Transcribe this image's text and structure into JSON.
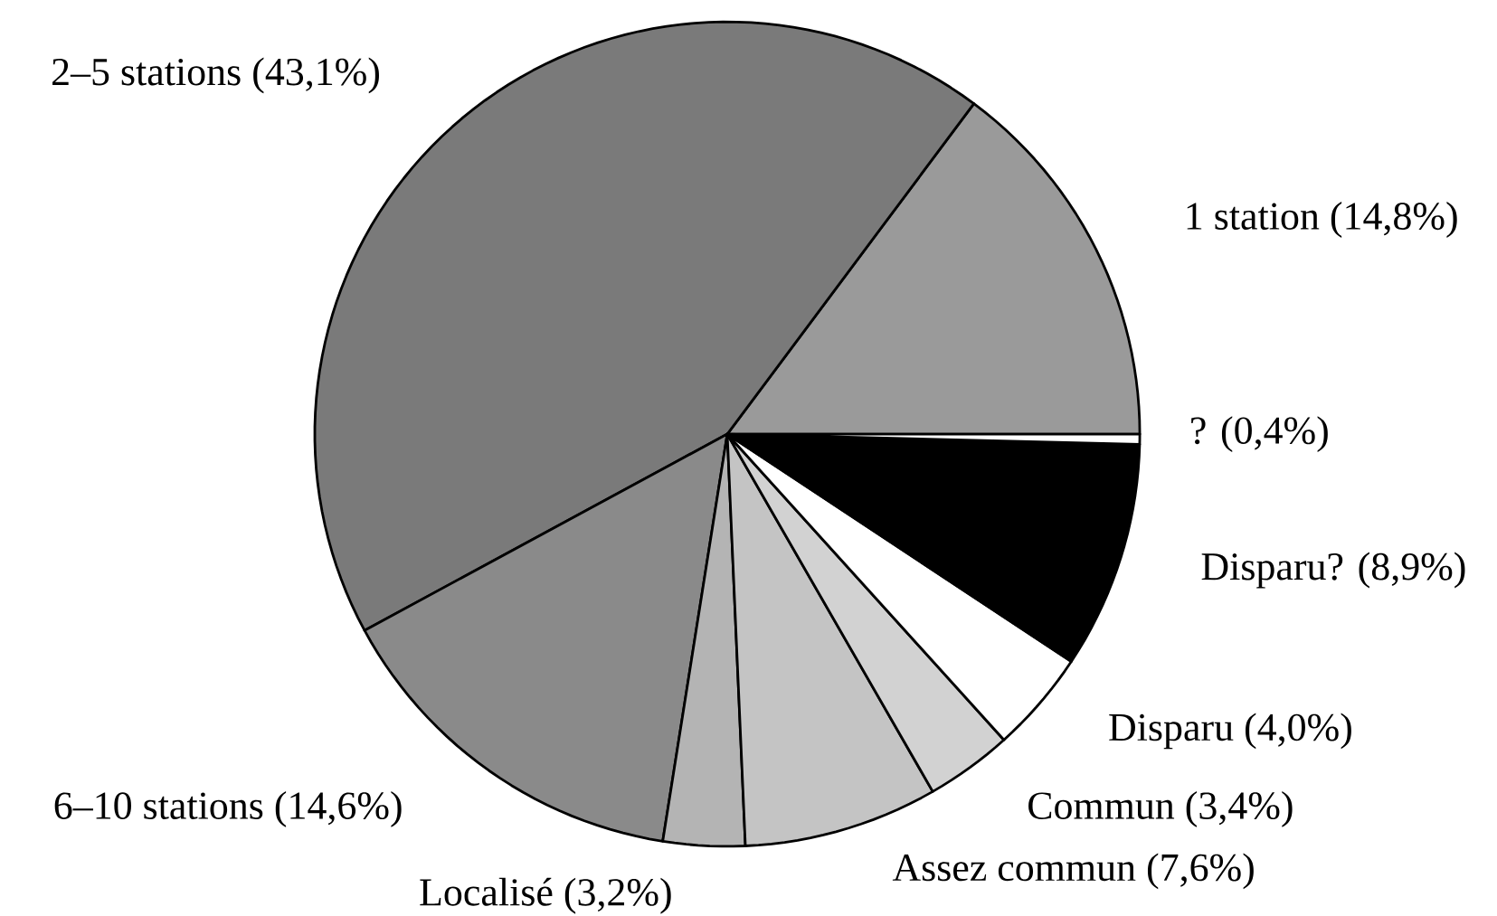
{
  "chart_data": {
    "type": "pie",
    "categories": [
      "1 station",
      "2–5 stations",
      "6–10 stations",
      "Localisé",
      "Assez commun",
      "Commun",
      "Disparu",
      "Disparu?",
      "?"
    ],
    "values": [
      14.8,
      43.1,
      14.6,
      3.2,
      7.6,
      3.4,
      4.0,
      8.9,
      0.4
    ],
    "value_labels": [
      "(14,8%)",
      "(43,1%)",
      "(14,6%)",
      "(3,2%)",
      "(7,6%)",
      "(3,4%)",
      "(4,0%)",
      "(8,9%)",
      "(0,4%)"
    ],
    "colors": [
      "#9a9a9a",
      "#7a7a7a",
      "#8a8a8a",
      "#b4b4b4",
      "#c4c4c4",
      "#d2d2d2",
      "#ffffff",
      "#000000",
      "#ffffff"
    ]
  }
}
